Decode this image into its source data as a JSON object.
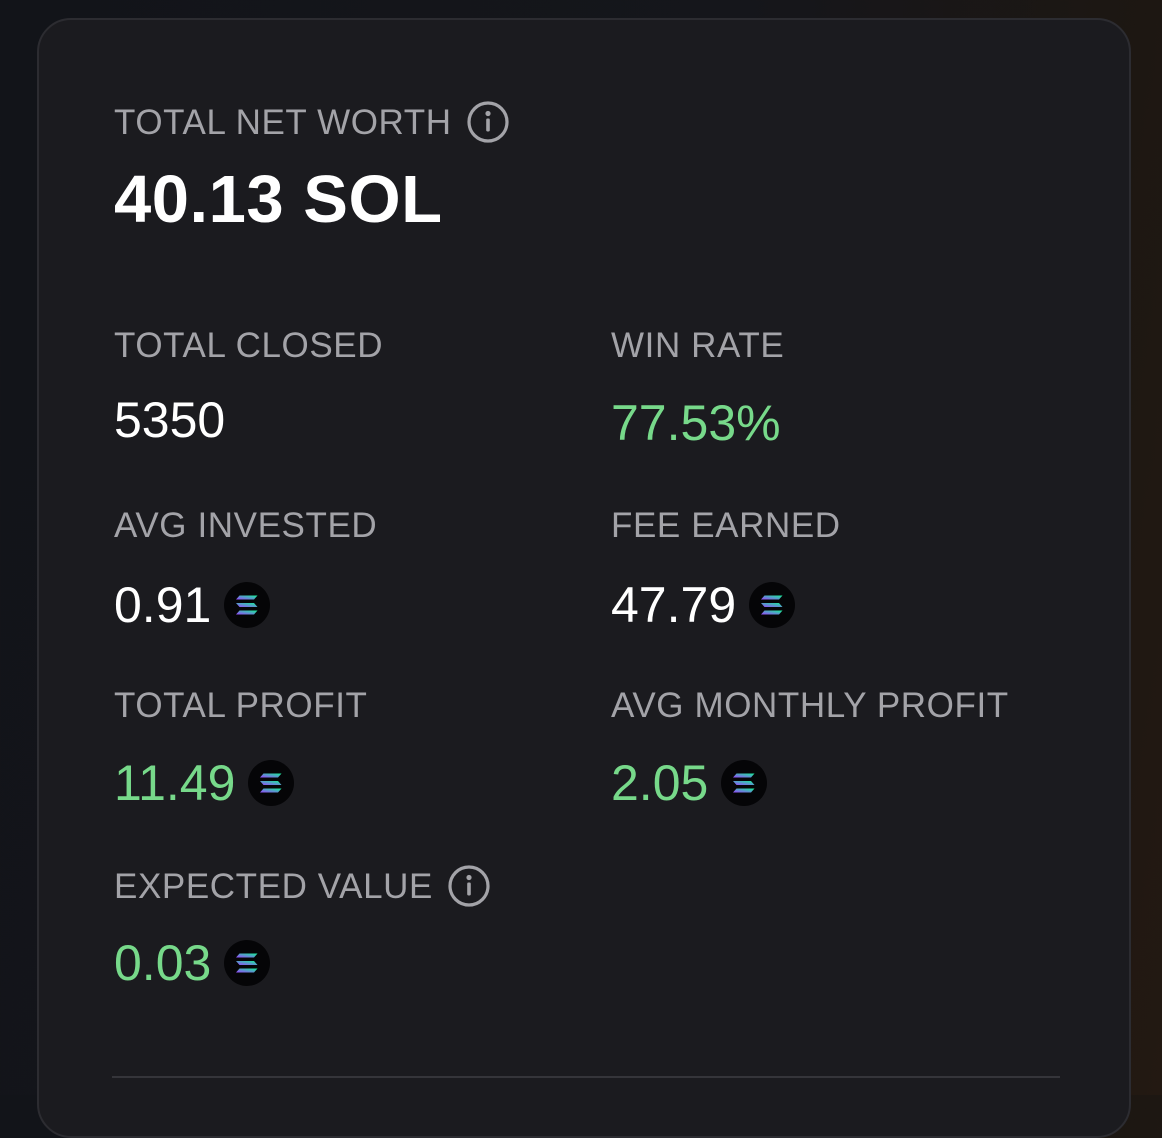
{
  "net_worth": {
    "label": "TOTAL NET WORTH",
    "value": "40.13 SOL"
  },
  "stats": {
    "total_closed": {
      "label": "TOTAL CLOSED",
      "value": "5350"
    },
    "win_rate": {
      "label": "WIN RATE",
      "value": "77.53%"
    },
    "avg_invested": {
      "label": "AVG INVESTED",
      "value": "0.91"
    },
    "fee_earned": {
      "label": "FEE EARNED",
      "value": "47.79"
    },
    "total_profit": {
      "label": "TOTAL PROFIT",
      "value": "11.49"
    },
    "avg_monthly_profit": {
      "label": "AVG MONTHLY PROFIT",
      "value": "2.05"
    },
    "expected_value": {
      "label": "EXPECTED VALUE",
      "value": "0.03"
    }
  },
  "icons": {
    "info": "info-circle-icon",
    "token": "solana-icon"
  },
  "colors": {
    "positive": "#77d98a",
    "label": "#a3a3a8",
    "card_bg": "#1b1b1f"
  }
}
